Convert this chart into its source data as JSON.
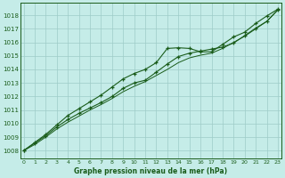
{
  "title": "Graphe pression niveau de la mer (hPa)",
  "bg_color": "#c5ece8",
  "grid_color": "#9eccc7",
  "line_color": "#1a5c1a",
  "xlim": [
    -0.3,
    23.3
  ],
  "ylim": [
    1007.4,
    1018.9
  ],
  "yticks": [
    1008,
    1009,
    1010,
    1011,
    1012,
    1013,
    1014,
    1015,
    1016,
    1017,
    1018
  ],
  "xticks": [
    0,
    1,
    2,
    3,
    4,
    5,
    6,
    7,
    8,
    9,
    10,
    11,
    12,
    13,
    14,
    15,
    16,
    17,
    18,
    19,
    20,
    21,
    22,
    23
  ],
  "series_upper": [
    1008.0,
    1008.6,
    1009.2,
    1009.9,
    1010.6,
    1011.1,
    1011.6,
    1012.1,
    1012.7,
    1013.3,
    1013.7,
    1014.0,
    1014.5,
    1015.55,
    1015.6,
    1015.55,
    1015.3,
    1015.3,
    1015.85,
    1016.4,
    1016.75,
    1017.4,
    1017.95,
    1018.45
  ],
  "series_lower": [
    1008.0,
    1008.55,
    1009.1,
    1009.75,
    1010.3,
    1010.75,
    1011.15,
    1011.55,
    1012.0,
    1012.6,
    1013.0,
    1013.2,
    1013.8,
    1014.4,
    1014.95,
    1015.2,
    1015.35,
    1015.5,
    1015.65,
    1015.95,
    1016.5,
    1017.05,
    1017.55,
    1018.4
  ],
  "series_smooth": [
    1008.0,
    1008.45,
    1009.0,
    1009.6,
    1010.1,
    1010.55,
    1011.0,
    1011.4,
    1011.85,
    1012.35,
    1012.75,
    1013.1,
    1013.55,
    1014.0,
    1014.5,
    1014.85,
    1015.05,
    1015.2,
    1015.55,
    1016.0,
    1016.45,
    1017.0,
    1017.55,
    1018.4
  ]
}
